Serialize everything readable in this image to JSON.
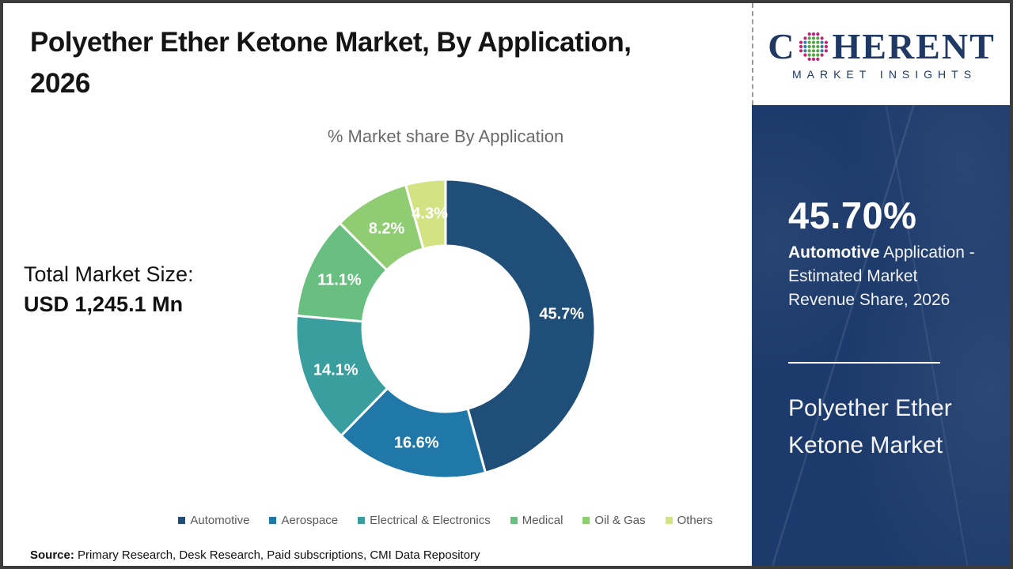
{
  "header": {
    "title_line1": "Polyether Ether Ketone Market, By Application,",
    "title_line2": "2026"
  },
  "logo": {
    "name": "Coherent Market Insights",
    "word_start": "C",
    "word_end": "HERENT",
    "tagline": "MARKET INSIGHTS",
    "navy": "#1F3864",
    "dot_colors": {
      "green": "#55A546",
      "teal": "#2E7EA6",
      "magenta": "#C32176"
    }
  },
  "left_panel": {
    "total_label": "Total Market Size:",
    "total_value": "USD 1,245.1 Mn"
  },
  "chart_data": {
    "type": "pie",
    "subtype": "donut",
    "title": "% Market share By Application",
    "categories": [
      "Automotive",
      "Aerospace",
      "Electrical & Electronics",
      "Medical",
      "Oil & Gas",
      "Others"
    ],
    "values": [
      45.7,
      16.6,
      14.1,
      11.1,
      8.2,
      4.3
    ],
    "labels": [
      "45.7%",
      "16.6%",
      "14.1%",
      "11.1%",
      "8.2%",
      "4.3%"
    ],
    "colors": [
      "#1F4E79",
      "#1F78A8",
      "#3A9E9E",
      "#68BF80",
      "#8FCC72",
      "#D3E383"
    ],
    "start_angle_deg": 0,
    "direction": "clockwise",
    "outer_radius": 189,
    "inner_radius": 105,
    "slice_gap_color": "#FFFFFF",
    "label_color": "#FFFFFF",
    "legend_position": "bottom"
  },
  "sidebar": {
    "bg_color": "#1C3A6B",
    "stat_value": "45.70%",
    "stat_desc_bold": "Automotive",
    "stat_desc_rest": " Application - Estimated Market Revenue Share, 2026",
    "market_line1": "Polyether Ether",
    "market_line2": "Ketone Market"
  },
  "footer": {
    "source_label": "Source:",
    "source_text": " Primary Research, Desk Research, Paid subscriptions, CMI Data Repository"
  }
}
